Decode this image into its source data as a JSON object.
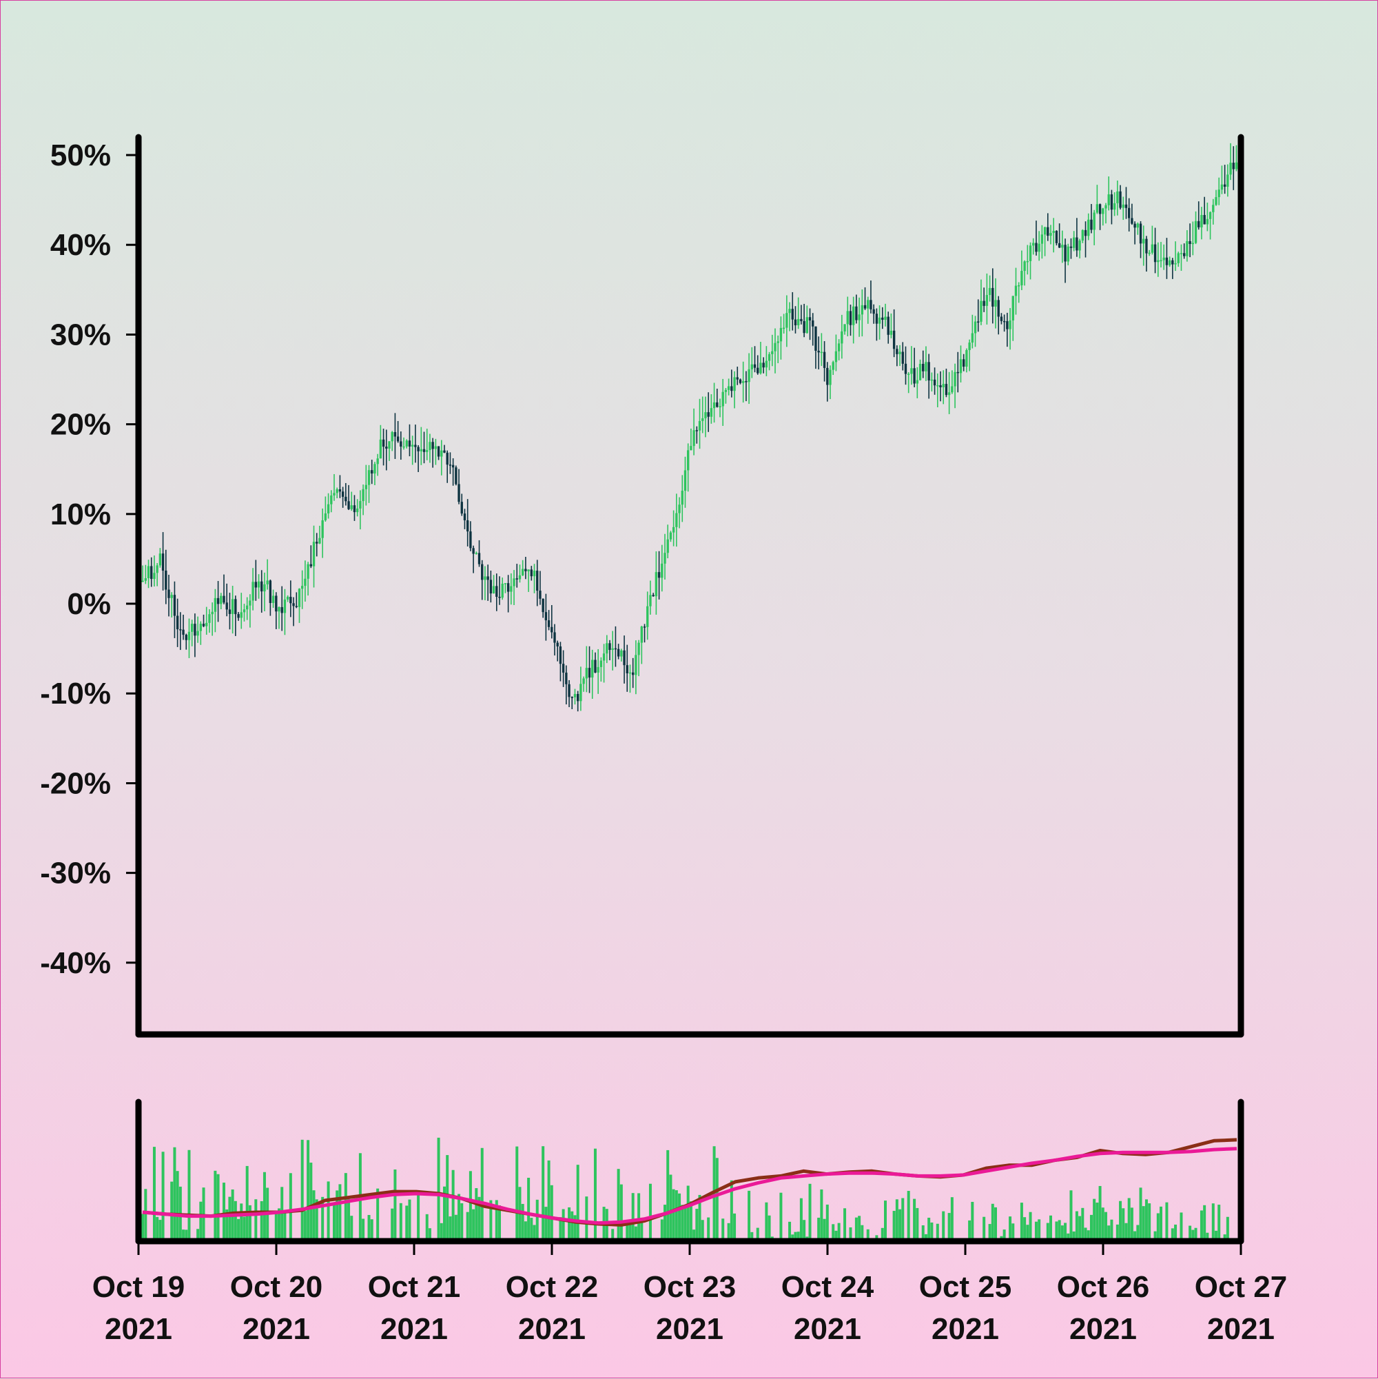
{
  "chart_data": {
    "type": "candlestick",
    "y_axis": {
      "ticks": [
        50,
        40,
        30,
        20,
        10,
        0,
        -10,
        -20,
        -30,
        -40
      ],
      "tick_labels": [
        "50%",
        "40%",
        "30%",
        "20%",
        "10%",
        "0%",
        "-10%",
        "-20%",
        "-30%",
        "-40%"
      ],
      "range": [
        -48,
        52
      ]
    },
    "x_axis": {
      "range": [
        "2021-10-19",
        "2021-10-27"
      ],
      "ticks": [
        {
          "date": "2021-10-19",
          "line1": "Oct 19",
          "line2": "2021"
        },
        {
          "date": "2021-10-20",
          "line1": "Oct 20",
          "line2": "2021"
        },
        {
          "date": "2021-10-21",
          "line1": "Oct 21",
          "line2": "2021"
        },
        {
          "date": "2021-10-22",
          "line1": "Oct 22",
          "line2": "2021"
        },
        {
          "date": "2021-10-23",
          "line1": "Oct 23",
          "line2": "2021"
        },
        {
          "date": "2021-10-24",
          "line1": "Oct 24",
          "line2": "2021"
        },
        {
          "date": "2021-10-25",
          "line1": "Oct 25",
          "line2": "2021"
        },
        {
          "date": "2021-10-26",
          "line1": "Oct 26",
          "line2": "2021"
        },
        {
          "date": "2021-10-27",
          "line1": "Oct 27",
          "line2": "2021"
        }
      ]
    },
    "close_path": [
      {
        "date": "2021-10-19",
        "value": 2
      },
      {
        "date": "2021-10-19",
        "value": 5
      },
      {
        "date": "2021-10-19",
        "value": -3
      },
      {
        "date": "2021-10-19",
        "value": -3
      },
      {
        "date": "2021-10-19",
        "value": 1
      },
      {
        "date": "2021-10-19",
        "value": -1
      },
      {
        "date": "2021-10-19",
        "value": 3
      },
      {
        "date": "2021-10-20",
        "value": 0
      },
      {
        "date": "2021-10-20",
        "value": 0
      },
      {
        "date": "2021-10-20",
        "value": 7
      },
      {
        "date": "2021-10-20",
        "value": 13
      },
      {
        "date": "2021-10-20",
        "value": 10
      },
      {
        "date": "2021-10-20",
        "value": 17
      },
      {
        "date": "2021-10-20",
        "value": 19
      },
      {
        "date": "2021-10-21",
        "value": 17
      },
      {
        "date": "2021-10-21",
        "value": 18
      },
      {
        "date": "2021-10-21",
        "value": 14
      },
      {
        "date": "2021-10-21",
        "value": 5
      },
      {
        "date": "2021-10-21",
        "value": 1
      },
      {
        "date": "2021-10-21",
        "value": 3
      },
      {
        "date": "2021-10-21",
        "value": 3
      },
      {
        "date": "2021-10-22",
        "value": -4
      },
      {
        "date": "2021-10-22",
        "value": -11
      },
      {
        "date": "2021-10-22",
        "value": -7
      },
      {
        "date": "2021-10-22",
        "value": -4
      },
      {
        "date": "2021-10-22",
        "value": -8
      },
      {
        "date": "2021-10-22",
        "value": 1
      },
      {
        "date": "2021-10-22",
        "value": 8
      },
      {
        "date": "2021-10-23",
        "value": 18
      },
      {
        "date": "2021-10-23",
        "value": 22
      },
      {
        "date": "2021-10-23",
        "value": 24
      },
      {
        "date": "2021-10-23",
        "value": 26
      },
      {
        "date": "2021-10-23",
        "value": 28
      },
      {
        "date": "2021-10-23",
        "value": 32
      },
      {
        "date": "2021-10-23",
        "value": 31
      },
      {
        "date": "2021-10-24",
        "value": 25
      },
      {
        "date": "2021-10-24",
        "value": 32
      },
      {
        "date": "2021-10-24",
        "value": 33
      },
      {
        "date": "2021-10-24",
        "value": 31
      },
      {
        "date": "2021-10-24",
        "value": 25
      },
      {
        "date": "2021-10-24",
        "value": 26
      },
      {
        "date": "2021-10-24",
        "value": 23
      },
      {
        "date": "2021-10-25",
        "value": 28
      },
      {
        "date": "2021-10-25",
        "value": 35
      },
      {
        "date": "2021-10-25",
        "value": 31
      },
      {
        "date": "2021-10-25",
        "value": 38
      },
      {
        "date": "2021-10-25",
        "value": 42
      },
      {
        "date": "2021-10-25",
        "value": 39
      },
      {
        "date": "2021-10-25",
        "value": 41
      },
      {
        "date": "2021-10-26",
        "value": 45
      },
      {
        "date": "2021-10-26",
        "value": 45
      },
      {
        "date": "2021-10-26",
        "value": 40
      },
      {
        "date": "2021-10-26",
        "value": 38
      },
      {
        "date": "2021-10-26",
        "value": 39
      },
      {
        "date": "2021-10-26",
        "value": 43
      },
      {
        "date": "2021-10-26",
        "value": 47
      },
      {
        "date": "2021-10-27",
        "value": 51
      },
      {
        "date": "2021-10-27",
        "value": 50
      },
      {
        "date": "2021-10-27",
        "value": 46
      }
    ],
    "volume_ma_fast": [
      0.12,
      0.1,
      0.09,
      0.08,
      0.11,
      0.12,
      0.12,
      0.14,
      0.24,
      0.27,
      0.3,
      0.33,
      0.33,
      0.31,
      0.26,
      0.18,
      0.14,
      0.1,
      0.06,
      0.02,
      0.0,
      -0.01,
      0.03,
      0.11,
      0.2,
      0.32,
      0.43,
      0.47,
      0.49,
      0.54,
      0.51,
      0.53,
      0.54,
      0.51,
      0.49,
      0.48,
      0.5,
      0.57,
      0.6,
      0.6,
      0.65,
      0.68,
      0.75,
      0.72,
      0.71,
      0.73,
      0.79,
      0.85,
      0.86
    ],
    "volume_ma_slow": [
      0.12,
      0.1,
      0.08,
      0.08,
      0.09,
      0.1,
      0.12,
      0.15,
      0.19,
      0.23,
      0.27,
      0.3,
      0.31,
      0.3,
      0.26,
      0.21,
      0.15,
      0.1,
      0.06,
      0.03,
      0.01,
      0.02,
      0.05,
      0.11,
      0.19,
      0.28,
      0.36,
      0.42,
      0.47,
      0.49,
      0.51,
      0.52,
      0.52,
      0.51,
      0.49,
      0.49,
      0.5,
      0.54,
      0.58,
      0.62,
      0.65,
      0.69,
      0.72,
      0.73,
      0.73,
      0.73,
      0.74,
      0.76,
      0.77
    ],
    "colors": {
      "up": "#2ec45e",
      "down": "#0d3340",
      "volume": "#2ec45e",
      "ma_fast": "#8a2e16",
      "ma_slow": "#ea1a97",
      "axis": "#000000"
    }
  }
}
